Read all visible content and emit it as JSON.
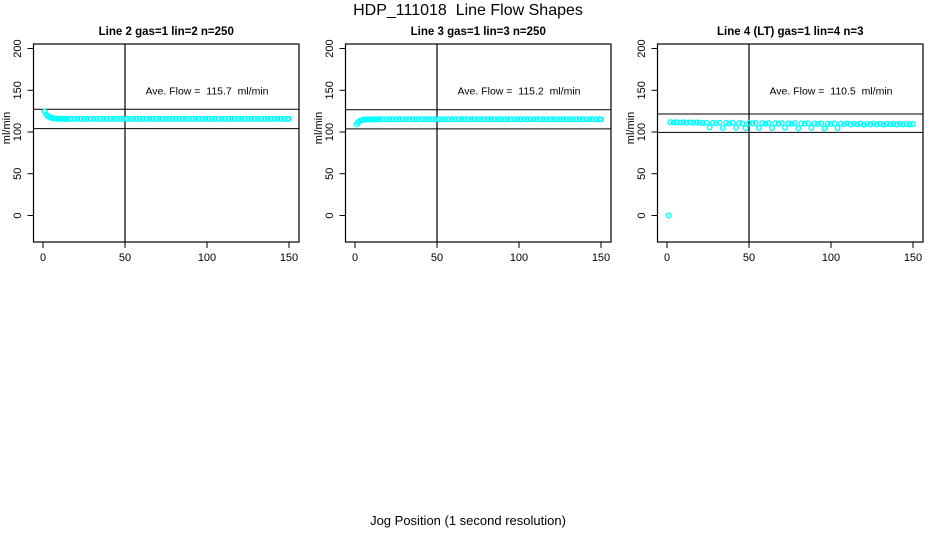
{
  "page": {
    "title": "HDP_111018  Line Flow Shapes",
    "x_axis_label": "Jog Position (1 second resolution)"
  },
  "colors": {
    "points": "#00FFFF",
    "axis": "#000000",
    "background": "#FFFFFF"
  },
  "chart_data": [
    {
      "type": "scatter",
      "title": "Line 2 gas=1 lin=2 n=250",
      "annotation": "Ave. Flow =  115.7  ml/min",
      "ave_flow": 115.7,
      "ave_flow_units": "ml/min",
      "ref_lines": [
        127.3,
        104.1
      ],
      "vline_x": 50,
      "ylabel": "ml/min",
      "x_ticks": [
        0,
        50,
        100,
        150
      ],
      "y_ticks": [
        0,
        50,
        100,
        150,
        200
      ],
      "xlim": [
        0,
        150
      ],
      "ylim": [
        0,
        200
      ],
      "points": [
        [
          1,
          124.5
        ],
        [
          2,
          120.8
        ],
        [
          3,
          118.9
        ],
        [
          4,
          117.7
        ],
        [
          5,
          117.0
        ],
        [
          6,
          116.5
        ],
        [
          7,
          116.2
        ],
        [
          8,
          116.0
        ],
        [
          9,
          115.9
        ],
        [
          10,
          115.85
        ],
        [
          11,
          115.8
        ],
        [
          12,
          115.8
        ],
        [
          13,
          115.75
        ],
        [
          14,
          115.75
        ],
        [
          15,
          115.7
        ],
        [
          17,
          115.7
        ],
        [
          19,
          115.7
        ],
        [
          21,
          115.7
        ],
        [
          23,
          115.7
        ],
        [
          25,
          115.7
        ],
        [
          27,
          115.7
        ],
        [
          29,
          115.7
        ],
        [
          31,
          115.7
        ],
        [
          33,
          115.7
        ],
        [
          35,
          115.7
        ],
        [
          37,
          115.7
        ],
        [
          39,
          115.7
        ],
        [
          41,
          115.7
        ],
        [
          43,
          115.7
        ],
        [
          45,
          115.7
        ],
        [
          47,
          115.7
        ],
        [
          49,
          115.7
        ],
        [
          51,
          115.7
        ],
        [
          53,
          115.7
        ],
        [
          55,
          115.7
        ],
        [
          57,
          115.7
        ],
        [
          59,
          115.7
        ],
        [
          61,
          115.7
        ],
        [
          63,
          115.7
        ],
        [
          65,
          115.7
        ],
        [
          67,
          115.7
        ],
        [
          69,
          115.7
        ],
        [
          71,
          115.7
        ],
        [
          73,
          115.7
        ],
        [
          75,
          115.7
        ],
        [
          77,
          115.7
        ],
        [
          79,
          115.7
        ],
        [
          81,
          115.7
        ],
        [
          83,
          115.7
        ],
        [
          85,
          115.7
        ],
        [
          87,
          115.7
        ],
        [
          89,
          115.7
        ],
        [
          91,
          115.7
        ],
        [
          93,
          115.7
        ],
        [
          95,
          115.7
        ],
        [
          97,
          115.7
        ],
        [
          99,
          115.7
        ],
        [
          101,
          115.7
        ],
        [
          103,
          115.7
        ],
        [
          105,
          115.7
        ],
        [
          107,
          115.7
        ],
        [
          109,
          115.7
        ],
        [
          111,
          115.7
        ],
        [
          113,
          115.7
        ],
        [
          115,
          115.7
        ],
        [
          117,
          115.7
        ],
        [
          119,
          115.7
        ],
        [
          121,
          115.7
        ],
        [
          123,
          115.7
        ],
        [
          125,
          115.7
        ],
        [
          127,
          115.7
        ],
        [
          129,
          115.7
        ],
        [
          131,
          115.7
        ],
        [
          133,
          115.7
        ],
        [
          135,
          115.7
        ],
        [
          137,
          115.7
        ],
        [
          139,
          115.7
        ],
        [
          141,
          115.7
        ],
        [
          143,
          115.7
        ],
        [
          145,
          115.7
        ],
        [
          147,
          115.7
        ],
        [
          149,
          115.7
        ],
        [
          150,
          115.7
        ]
      ]
    },
    {
      "type": "scatter",
      "title": "Line 3 gas=1 lin=3 n=250",
      "annotation": "Ave. Flow =  115.2  ml/min",
      "ave_flow": 115.2,
      "ave_flow_units": "ml/min",
      "ref_lines": [
        126.7,
        103.7
      ],
      "vline_x": 50,
      "ylabel": "ml/min",
      "x_ticks": [
        0,
        50,
        100,
        150
      ],
      "y_ticks": [
        0,
        50,
        100,
        150,
        200
      ],
      "xlim": [
        0,
        150
      ],
      "ylim": [
        0,
        200
      ],
      "points": [
        [
          1,
          109.2
        ],
        [
          2,
          111.8
        ],
        [
          3,
          113.3
        ],
        [
          4,
          114.2
        ],
        [
          5,
          114.6
        ],
        [
          6,
          114.9
        ],
        [
          7,
          115.0
        ],
        [
          8,
          115.05
        ],
        [
          9,
          115.1
        ],
        [
          10,
          115.1
        ],
        [
          11,
          115.15
        ],
        [
          12,
          115.15
        ],
        [
          13,
          115.2
        ],
        [
          14,
          115.2
        ],
        [
          15,
          115.2
        ],
        [
          17,
          115.2
        ],
        [
          19,
          115.2
        ],
        [
          21,
          115.2
        ],
        [
          23,
          115.2
        ],
        [
          25,
          115.2
        ],
        [
          27,
          115.2
        ],
        [
          29,
          115.2
        ],
        [
          31,
          115.2
        ],
        [
          33,
          115.2
        ],
        [
          35,
          115.2
        ],
        [
          37,
          115.2
        ],
        [
          39,
          115.2
        ],
        [
          41,
          115.2
        ],
        [
          43,
          115.2
        ],
        [
          45,
          115.2
        ],
        [
          47,
          115.2
        ],
        [
          49,
          115.2
        ],
        [
          51,
          115.2
        ],
        [
          53,
          115.2
        ],
        [
          55,
          115.2
        ],
        [
          57,
          115.2
        ],
        [
          59,
          115.2
        ],
        [
          61,
          115.2
        ],
        [
          63,
          115.2
        ],
        [
          65,
          115.2
        ],
        [
          67,
          115.2
        ],
        [
          69,
          115.2
        ],
        [
          71,
          115.2
        ],
        [
          73,
          115.2
        ],
        [
          75,
          115.2
        ],
        [
          77,
          115.2
        ],
        [
          79,
          115.2
        ],
        [
          81,
          115.2
        ],
        [
          83,
          115.2
        ],
        [
          85,
          115.2
        ],
        [
          87,
          115.2
        ],
        [
          89,
          115.2
        ],
        [
          91,
          115.2
        ],
        [
          93,
          115.2
        ],
        [
          95,
          115.2
        ],
        [
          97,
          115.2
        ],
        [
          99,
          115.2
        ],
        [
          101,
          115.2
        ],
        [
          103,
          115.2
        ],
        [
          105,
          115.2
        ],
        [
          107,
          115.2
        ],
        [
          109,
          115.2
        ],
        [
          111,
          115.2
        ],
        [
          113,
          115.2
        ],
        [
          115,
          115.2
        ],
        [
          117,
          115.2
        ],
        [
          119,
          115.2
        ],
        [
          121,
          115.2
        ],
        [
          123,
          115.2
        ],
        [
          125,
          115.2
        ],
        [
          127,
          115.2
        ],
        [
          129,
          115.2
        ],
        [
          131,
          115.2
        ],
        [
          133,
          115.2
        ],
        [
          135,
          115.2
        ],
        [
          137,
          115.2
        ],
        [
          139,
          115.2
        ],
        [
          141,
          115.2
        ],
        [
          143,
          115.2
        ],
        [
          145,
          115.2
        ],
        [
          147,
          115.2
        ],
        [
          149,
          115.2
        ],
        [
          150,
          115.2
        ]
      ]
    },
    {
      "type": "scatter",
      "title": "Line 4 (LT) gas=1 lin=4 n=3",
      "annotation": "Ave. Flow =  110.5  ml/min",
      "ave_flow": 110.5,
      "ave_flow_units": "ml/min",
      "ref_lines": [
        121.6,
        99.5
      ],
      "vline_x": 50,
      "ylabel": "ml/min",
      "x_ticks": [
        0,
        50,
        100,
        150
      ],
      "y_ticks": [
        0,
        50,
        100,
        150,
        200
      ],
      "xlim": [
        0,
        150
      ],
      "ylim": [
        0,
        200
      ],
      "points": [
        [
          1,
          0
        ],
        [
          2,
          111.8
        ],
        [
          4,
          111.4
        ],
        [
          6,
          111.9
        ],
        [
          8,
          111.2
        ],
        [
          10,
          111.7
        ],
        [
          12,
          111.0
        ],
        [
          14,
          111.6
        ],
        [
          16,
          110.9
        ],
        [
          18,
          111.5
        ],
        [
          20,
          111.2
        ],
        [
          22,
          110.6
        ],
        [
          24,
          111.3
        ],
        [
          26,
          105.5
        ],
        [
          28,
          111.0
        ],
        [
          30,
          110.4
        ],
        [
          32,
          111.2
        ],
        [
          34,
          104.8
        ],
        [
          36,
          110.9
        ],
        [
          38,
          110.3
        ],
        [
          40,
          111.1
        ],
        [
          42,
          105.2
        ],
        [
          44,
          110.8
        ],
        [
          46,
          110.1
        ],
        [
          48,
          104.5
        ],
        [
          50,
          110.9
        ],
        [
          52,
          110.3
        ],
        [
          54,
          111.0
        ],
        [
          56,
          105.0
        ],
        [
          58,
          110.7
        ],
        [
          60,
          110.0
        ],
        [
          62,
          110.8
        ],
        [
          64,
          104.6
        ],
        [
          66,
          110.5
        ],
        [
          68,
          109.9
        ],
        [
          70,
          110.7
        ],
        [
          72,
          105.1
        ],
        [
          74,
          110.4
        ],
        [
          76,
          109.8
        ],
        [
          78,
          110.6
        ],
        [
          80,
          104.4
        ],
        [
          82,
          110.3
        ],
        [
          84,
          109.7
        ],
        [
          86,
          110.5
        ],
        [
          88,
          104.9
        ],
        [
          90,
          110.2
        ],
        [
          92,
          109.6
        ],
        [
          94,
          110.4
        ],
        [
          96,
          104.3
        ],
        [
          98,
          110.1
        ],
        [
          100,
          109.5
        ],
        [
          102,
          110.3
        ],
        [
          104,
          104.7
        ],
        [
          106,
          110.0
        ],
        [
          108,
          109.4
        ],
        [
          110,
          110.2
        ],
        [
          112,
          109.0
        ],
        [
          114,
          109.9
        ],
        [
          116,
          109.3
        ],
        [
          118,
          110.1
        ],
        [
          120,
          108.8
        ],
        [
          122,
          109.8
        ],
        [
          124,
          109.2
        ],
        [
          126,
          110.0
        ],
        [
          128,
          109.1
        ],
        [
          130,
          109.7
        ],
        [
          132,
          109.0
        ],
        [
          134,
          109.9
        ],
        [
          136,
          109.3
        ],
        [
          138,
          109.6
        ],
        [
          140,
          108.9
        ],
        [
          142,
          109.8
        ],
        [
          144,
          109.2
        ],
        [
          146,
          109.5
        ],
        [
          148,
          109.0
        ],
        [
          150,
          109.4
        ]
      ]
    }
  ]
}
